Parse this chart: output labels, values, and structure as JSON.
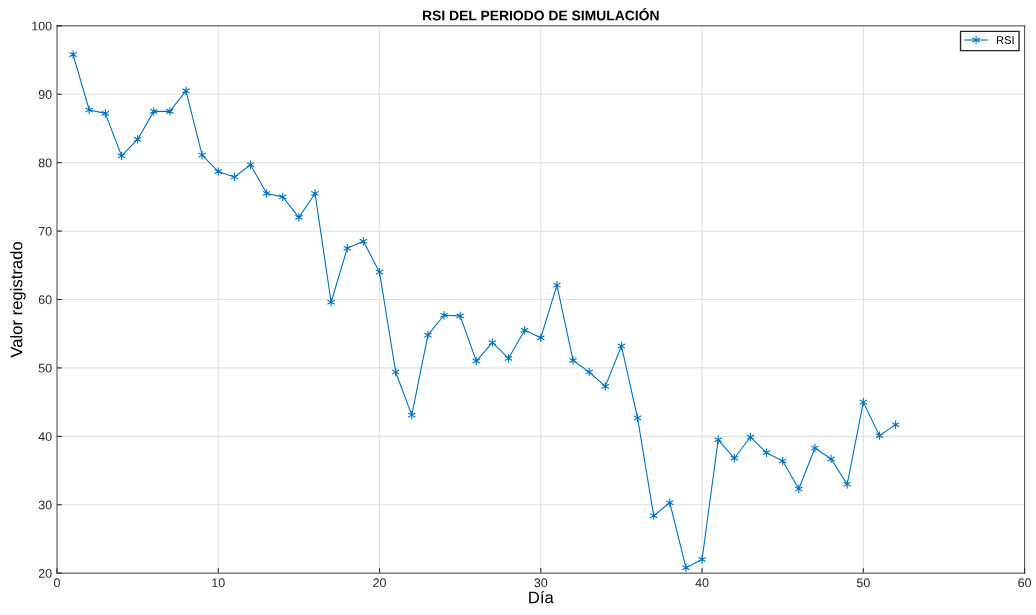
{
  "chart_data": {
    "type": "line",
    "title": "RSI DEL PERIODO DE SIMULACIÓN",
    "xlabel": "Día",
    "ylabel": "Valor registrado",
    "x": [
      1,
      2,
      3,
      4,
      5,
      6,
      7,
      8,
      9,
      10,
      11,
      12,
      13,
      14,
      15,
      16,
      17,
      18,
      19,
      20,
      21,
      22,
      23,
      24,
      25,
      26,
      27,
      28,
      29,
      30,
      31,
      32,
      33,
      34,
      35,
      36,
      37,
      38,
      39,
      40,
      41,
      42,
      43,
      44,
      45,
      46,
      47,
      48,
      49,
      50,
      51,
      52
    ],
    "series": [
      {
        "name": "RSI",
        "color": "#0072bd",
        "values": [
          95.8,
          87.7,
          87.2,
          81.0,
          83.4,
          87.5,
          87.5,
          90.5,
          81.1,
          78.7,
          77.9,
          79.7,
          75.5,
          75.0,
          72.0,
          75.5,
          59.6,
          67.5,
          68.5,
          64.0,
          49.4,
          43.1,
          54.8,
          57.7,
          57.6,
          51.0,
          53.7,
          51.4,
          55.5,
          54.4,
          62.1,
          51.1,
          49.4,
          47.3,
          53.2,
          42.7,
          28.4,
          30.3,
          20.8,
          22.0,
          39.5,
          36.8,
          39.9,
          37.6,
          36.4,
          32.3,
          38.3,
          36.7,
          33.0,
          45.0,
          40.1,
          41.7
        ]
      }
    ],
    "xlim": [
      0,
      60
    ],
    "xticks": [
      0,
      10,
      20,
      30,
      40,
      50,
      60
    ],
    "ylim": [
      20,
      100
    ],
    "yticks": [
      20,
      30,
      40,
      50,
      60,
      70,
      80,
      90,
      100
    ],
    "grid": true,
    "legend": "top right",
    "marker": "cross",
    "line_style": "solid"
  }
}
